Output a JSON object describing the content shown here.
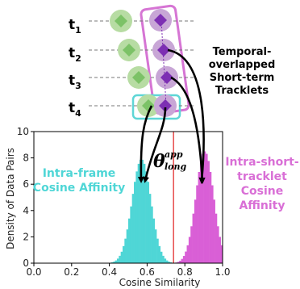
{
  "diagram": {
    "rows": [
      {
        "label": "t",
        "sub": "1"
      },
      {
        "label": "t",
        "sub": "2"
      },
      {
        "label": "t",
        "sub": "3"
      },
      {
        "label": "t",
        "sub": "4"
      }
    ],
    "side_title": [
      "Temporal-",
      "overlapped",
      "Short-term",
      "Tracklets"
    ],
    "colors": {
      "green_circle": "#b7dca3",
      "green_diamond": "#7cc267",
      "purple_circle": "#c8a6d6",
      "purple_diamond": "#7d2fb3",
      "magenta_box": "#d675d4",
      "cyan_box": "#5ed6d6"
    }
  },
  "chart": {
    "ylabel": "Density of Data Pairs",
    "xlabel": "Cosine Similarity",
    "intra_frame_label": [
      "Intra-frame",
      "Cosine Affinity"
    ],
    "intra_short_label": [
      "Intra-short-",
      "tracklet",
      "Cosine",
      "Affinity"
    ],
    "threshold_symbol": "θ",
    "threshold_sup": "app",
    "threshold_sub": "long"
  },
  "chart_data": {
    "type": "bar",
    "x_ticks": [
      "0.0",
      "0.2",
      "0.4",
      "0.6",
      "0.8",
      "1.0"
    ],
    "y_ticks": [
      "0",
      "2",
      "4",
      "6",
      "8",
      "10"
    ],
    "xlim": [
      0,
      1
    ],
    "ylim": [
      0,
      10
    ],
    "threshold": 0.74,
    "series": [
      {
        "name": "Intra-frame Cosine Affinity",
        "color": "#4fd6d6",
        "mean": 0.57,
        "std": 0.05,
        "peak": 7.9
      },
      {
        "name": "Intra-short-tracklet Cosine Affinity",
        "color": "#d95fd6",
        "mean": 0.905,
        "std": 0.047,
        "peak": 8.5
      }
    ]
  }
}
